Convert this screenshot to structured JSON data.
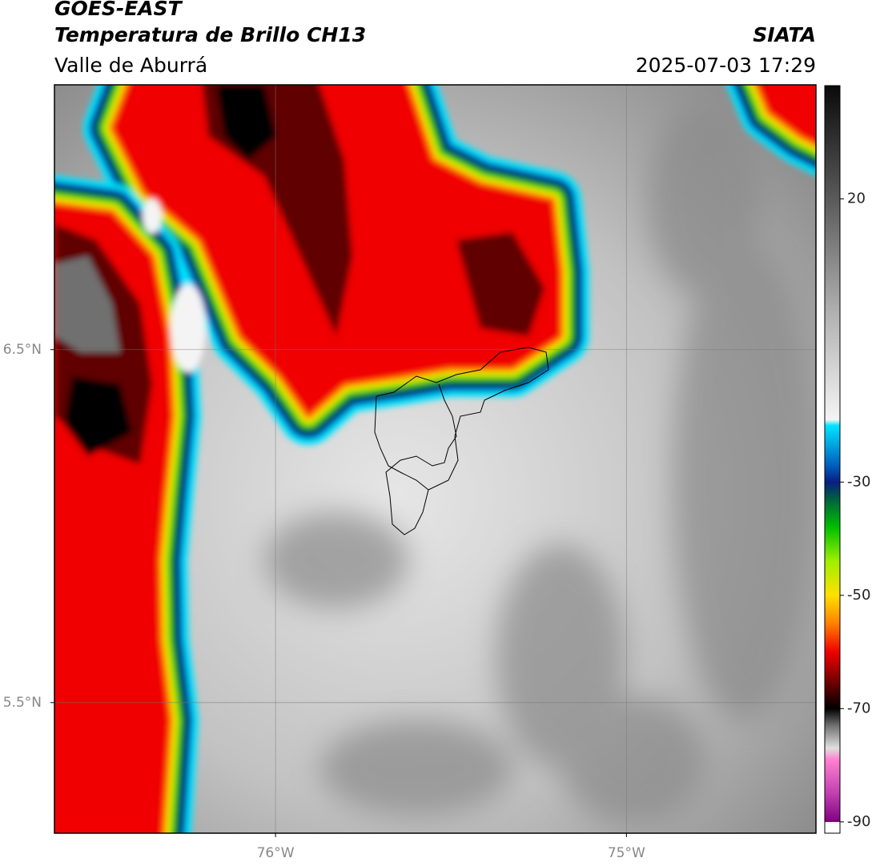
{
  "header": {
    "title": "GOES-EAST",
    "subtitle": "Temperatura de Brillo CH13",
    "region": "Valle de Aburrá",
    "source": "SIATA",
    "timestamp": "2025-07-03 17:29"
  },
  "map": {
    "xlim": [
      -76.63,
      -74.46
    ],
    "ylim": [
      5.13,
      7.25
    ],
    "xticks": [
      {
        "value": -76,
        "label": "76°W"
      },
      {
        "value": -75,
        "label": "75°W"
      }
    ],
    "yticks": [
      {
        "value": 6.5,
        "label": "6.5°N"
      },
      {
        "value": 5.5,
        "label": "5.5°N"
      }
    ],
    "grid": true
  },
  "colorbar": {
    "lim": [
      -92,
      40
    ],
    "ticks": [
      20,
      -30,
      -50,
      -70,
      -90
    ],
    "colormap": [
      {
        "value": 40,
        "color": "#0a0a0a"
      },
      {
        "value": 20,
        "color": "#5a5a5a"
      },
      {
        "value": 0,
        "color": "#b0b0b0"
      },
      {
        "value": -19,
        "color": "#f4f4f4"
      },
      {
        "value": -20,
        "color": "#00e5ff"
      },
      {
        "value": -27,
        "color": "#0060c0"
      },
      {
        "value": -30,
        "color": "#0a1e80"
      },
      {
        "value": -33,
        "color": "#006040"
      },
      {
        "value": -38,
        "color": "#00c000"
      },
      {
        "value": -44,
        "color": "#a0f000"
      },
      {
        "value": -50,
        "color": "#ffe000"
      },
      {
        "value": -55,
        "color": "#ff8000"
      },
      {
        "value": -60,
        "color": "#f00000"
      },
      {
        "value": -66,
        "color": "#600000"
      },
      {
        "value": -70,
        "color": "#000000"
      },
      {
        "value": -73,
        "color": "#707070"
      },
      {
        "value": -77,
        "color": "#e0e0e0"
      },
      {
        "value": -79,
        "color": "#ff80d0"
      },
      {
        "value": -85,
        "color": "#c040b0"
      },
      {
        "value": -90,
        "color": "#800080"
      },
      {
        "value": -90,
        "color": "#ffffff"
      },
      {
        "value": -92,
        "color": "#ffffff"
      }
    ]
  }
}
